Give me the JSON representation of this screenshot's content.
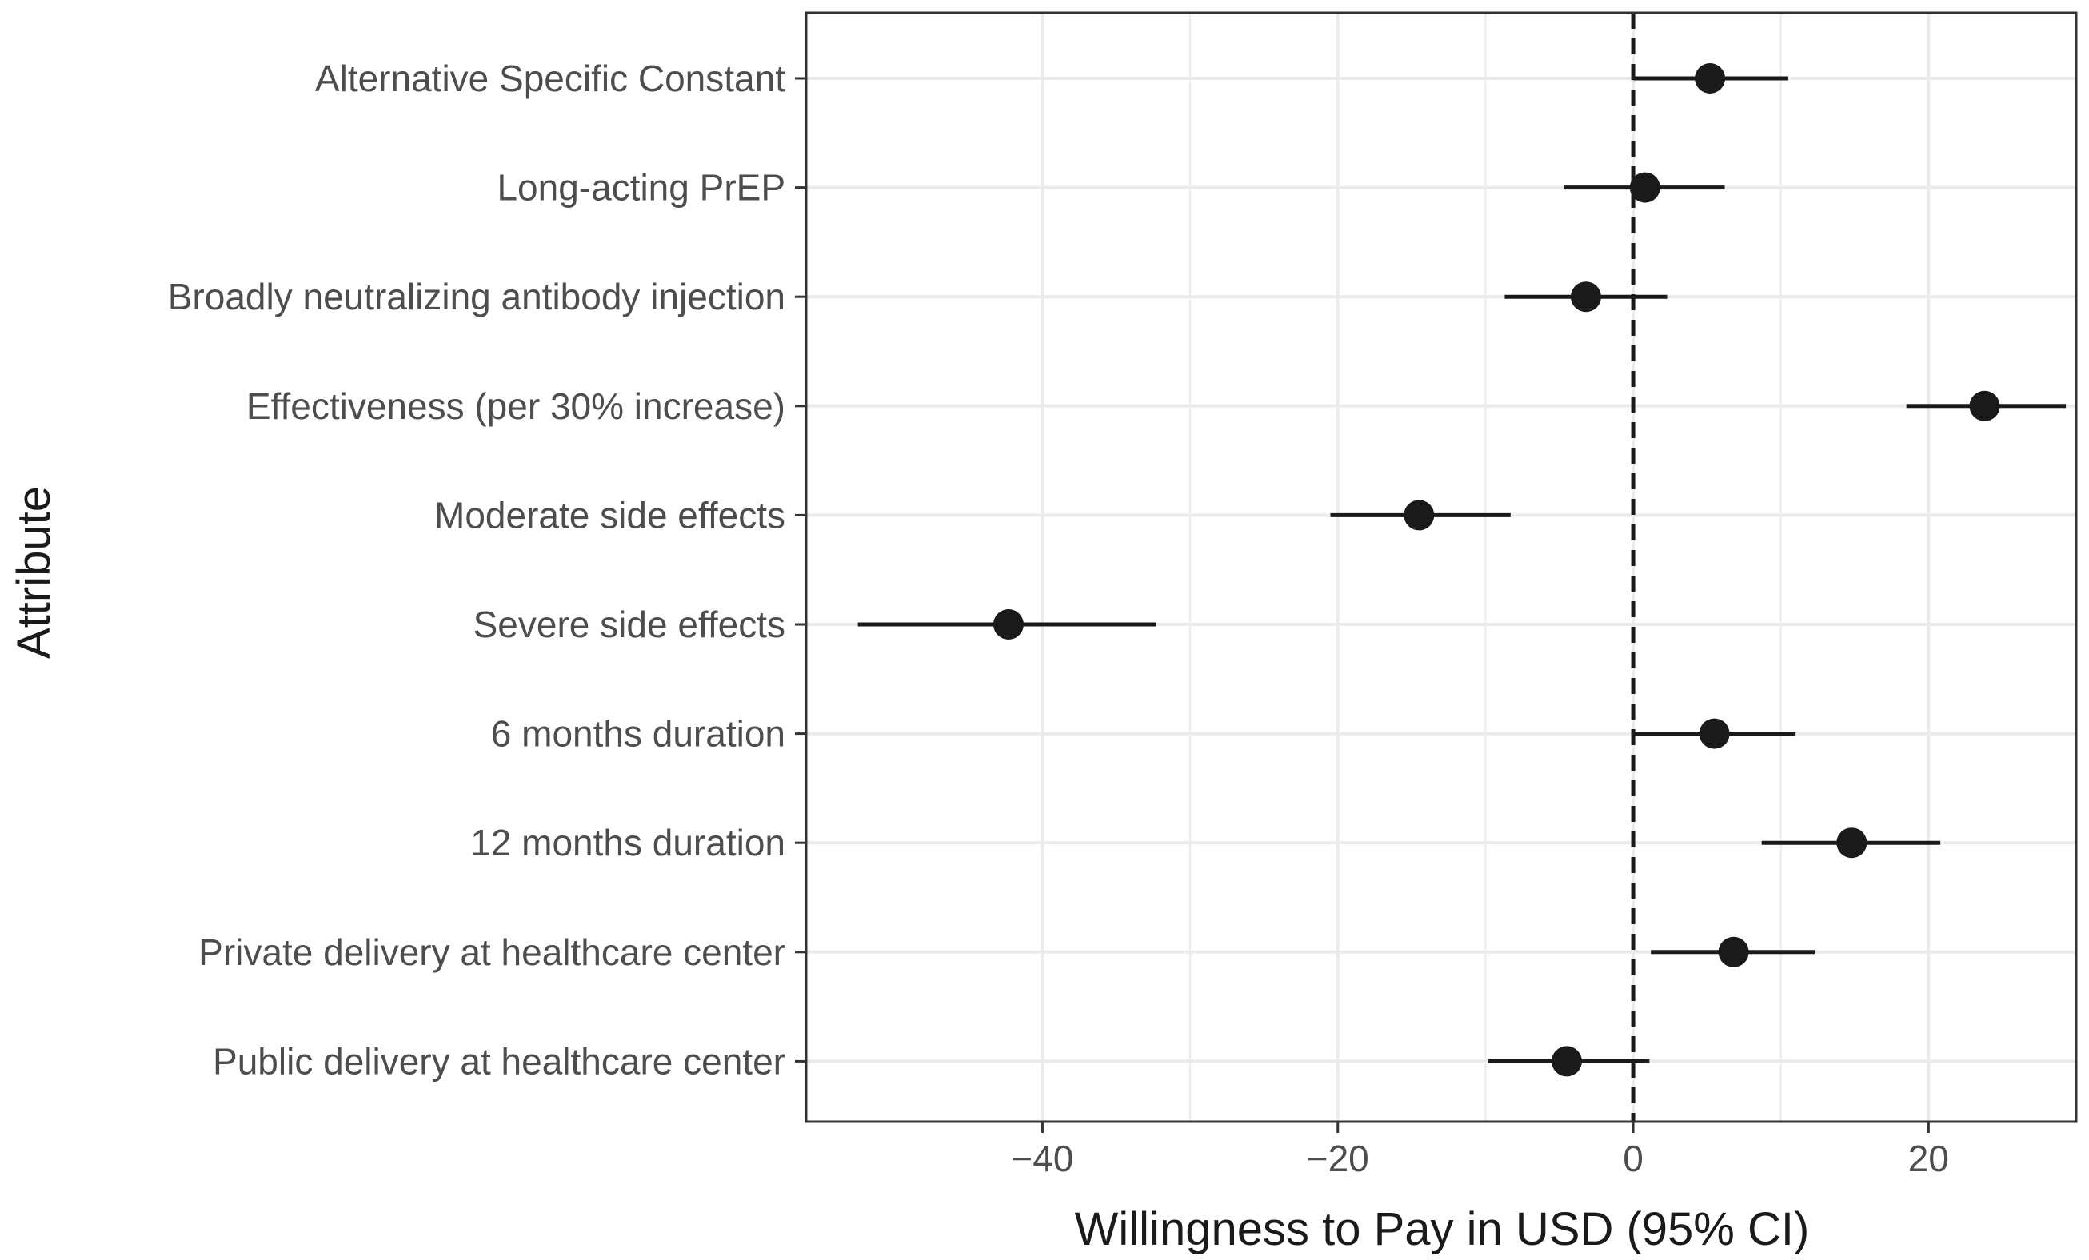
{
  "chart_data": {
    "type": "scatter",
    "subtype": "forest-plot",
    "title": "",
    "xlabel": "Willingness to Pay in USD (95% CI)",
    "ylabel": "Attribute",
    "xlim": [
      -56,
      30
    ],
    "xticks": [
      -40,
      -20,
      0,
      20
    ],
    "xtick_labels": [
      "−40",
      "−20",
      "0",
      "20"
    ],
    "reference_line": 0,
    "grid": true,
    "point_color": "#1a1a1a",
    "grid_color": "#ebebeb",
    "series": [
      {
        "label": "Alternative Specific Constant",
        "estimate": 5.2,
        "lower": 0.0,
        "upper": 10.5
      },
      {
        "label": "Long-acting PrEP",
        "estimate": 0.8,
        "lower": -4.7,
        "upper": 6.2
      },
      {
        "label": "Broadly neutralizing antibody injection",
        "estimate": -3.2,
        "lower": -8.7,
        "upper": 2.3
      },
      {
        "label": "Effectiveness (per 30% increase)",
        "estimate": 23.8,
        "lower": 18.5,
        "upper": 29.3
      },
      {
        "label": "Moderate side effects",
        "estimate": -14.5,
        "lower": -20.5,
        "upper": -8.3
      },
      {
        "label": "Severe side effects",
        "estimate": -42.3,
        "lower": -52.5,
        "upper": -32.3
      },
      {
        "label": "6 months duration",
        "estimate": 5.5,
        "lower": 0.0,
        "upper": 11.0
      },
      {
        "label": "12 months duration",
        "estimate": 14.8,
        "lower": 8.7,
        "upper": 20.8
      },
      {
        "label": "Private delivery at healthcare center",
        "estimate": 6.8,
        "lower": 1.2,
        "upper": 12.3
      },
      {
        "label": "Public delivery at healthcare center",
        "estimate": -4.5,
        "lower": -9.8,
        "upper": 1.1
      }
    ]
  }
}
